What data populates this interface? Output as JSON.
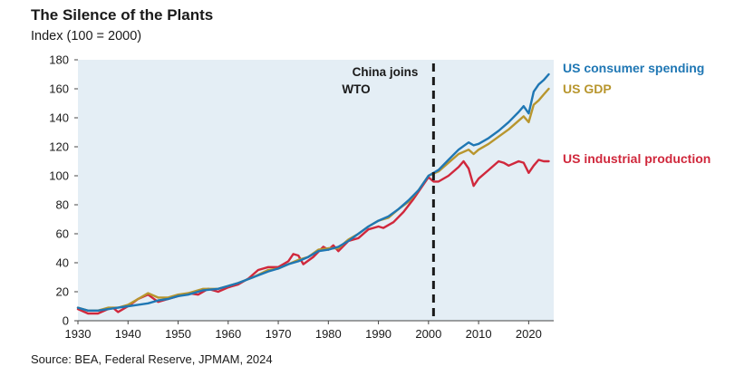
{
  "chart_data": {
    "type": "line",
    "title": "The Silence of the Plants",
    "subtitle": "Index (100 = 2000)",
    "source": "Source: BEA, Federal Reserve, JPMAM, 2024",
    "xlabel": "",
    "ylabel": "",
    "xlim": [
      1930,
      2025
    ],
    "ylim": [
      0,
      180
    ],
    "x_ticks": [
      1930,
      1940,
      1950,
      1960,
      1970,
      1980,
      1990,
      2000,
      2010,
      2020
    ],
    "y_ticks": [
      0,
      20,
      40,
      60,
      80,
      100,
      120,
      140,
      160,
      180
    ],
    "grid": false,
    "legend": "inline-right",
    "annotation": {
      "text_lines": [
        "China joins",
        "WTO"
      ],
      "x": 2001
    },
    "series": [
      {
        "name": "US consumer spending",
        "color": "#1f77b4",
        "points": [
          [
            1930,
            9
          ],
          [
            1932,
            7
          ],
          [
            1934,
            7
          ],
          [
            1936,
            8
          ],
          [
            1938,
            9
          ],
          [
            1940,
            10
          ],
          [
            1942,
            11
          ],
          [
            1944,
            12
          ],
          [
            1946,
            14
          ],
          [
            1948,
            15
          ],
          [
            1950,
            17
          ],
          [
            1952,
            18
          ],
          [
            1955,
            21
          ],
          [
            1958,
            22
          ],
          [
            1960,
            24
          ],
          [
            1962,
            26
          ],
          [
            1965,
            30
          ],
          [
            1968,
            34
          ],
          [
            1970,
            36
          ],
          [
            1972,
            39
          ],
          [
            1974,
            41
          ],
          [
            1976,
            44
          ],
          [
            1978,
            48
          ],
          [
            1980,
            49
          ],
          [
            1982,
            51
          ],
          [
            1984,
            55
          ],
          [
            1986,
            60
          ],
          [
            1988,
            65
          ],
          [
            1990,
            69
          ],
          [
            1992,
            72
          ],
          [
            1994,
            77
          ],
          [
            1996,
            83
          ],
          [
            1998,
            90
          ],
          [
            2000,
            100
          ],
          [
            2002,
            104
          ],
          [
            2004,
            111
          ],
          [
            2006,
            118
          ],
          [
            2008,
            123
          ],
          [
            2009,
            121
          ],
          [
            2010,
            122
          ],
          [
            2012,
            126
          ],
          [
            2014,
            131
          ],
          [
            2016,
            137
          ],
          [
            2018,
            144
          ],
          [
            2019,
            148
          ],
          [
            2020,
            143
          ],
          [
            2021,
            158
          ],
          [
            2022,
            163
          ],
          [
            2023,
            166
          ],
          [
            2024,
            170
          ]
        ]
      },
      {
        "name": "US GDP",
        "color": "#b8962e",
        "points": [
          [
            1930,
            9
          ],
          [
            1932,
            7
          ],
          [
            1934,
            7
          ],
          [
            1936,
            9
          ],
          [
            1938,
            9
          ],
          [
            1940,
            11
          ],
          [
            1942,
            15
          ],
          [
            1944,
            19
          ],
          [
            1946,
            16
          ],
          [
            1948,
            16
          ],
          [
            1950,
            18
          ],
          [
            1952,
            19
          ],
          [
            1955,
            22
          ],
          [
            1958,
            22
          ],
          [
            1960,
            24
          ],
          [
            1962,
            26
          ],
          [
            1965,
            30
          ],
          [
            1968,
            35
          ],
          [
            1970,
            36
          ],
          [
            1972,
            39
          ],
          [
            1974,
            42
          ],
          [
            1976,
            44
          ],
          [
            1978,
            49
          ],
          [
            1980,
            50
          ],
          [
            1982,
            50
          ],
          [
            1984,
            56
          ],
          [
            1986,
            60
          ],
          [
            1988,
            65
          ],
          [
            1990,
            69
          ],
          [
            1992,
            71
          ],
          [
            1994,
            77
          ],
          [
            1996,
            82
          ],
          [
            1998,
            90
          ],
          [
            2000,
            100
          ],
          [
            2002,
            103
          ],
          [
            2004,
            109
          ],
          [
            2006,
            115
          ],
          [
            2008,
            118
          ],
          [
            2009,
            115
          ],
          [
            2010,
            118
          ],
          [
            2012,
            122
          ],
          [
            2014,
            127
          ],
          [
            2016,
            132
          ],
          [
            2018,
            138
          ],
          [
            2019,
            141
          ],
          [
            2020,
            137
          ],
          [
            2021,
            149
          ],
          [
            2022,
            152
          ],
          [
            2023,
            156
          ],
          [
            2024,
            160
          ]
        ]
      },
      {
        "name": "US industrial production",
        "color": "#d0283c",
        "points": [
          [
            1930,
            8
          ],
          [
            1932,
            5
          ],
          [
            1934,
            5
          ],
          [
            1936,
            8
          ],
          [
            1937,
            9
          ],
          [
            1938,
            6
          ],
          [
            1940,
            10
          ],
          [
            1942,
            15
          ],
          [
            1944,
            18
          ],
          [
            1946,
            13
          ],
          [
            1948,
            15
          ],
          [
            1950,
            17
          ],
          [
            1952,
            19
          ],
          [
            1954,
            18
          ],
          [
            1956,
            22
          ],
          [
            1958,
            20
          ],
          [
            1960,
            23
          ],
          [
            1962,
            25
          ],
          [
            1964,
            29
          ],
          [
            1966,
            35
          ],
          [
            1968,
            37
          ],
          [
            1970,
            37
          ],
          [
            1972,
            41
          ],
          [
            1973,
            46
          ],
          [
            1974,
            45
          ],
          [
            1975,
            39
          ],
          [
            1977,
            44
          ],
          [
            1979,
            51
          ],
          [
            1980,
            49
          ],
          [
            1981,
            52
          ],
          [
            1982,
            48
          ],
          [
            1984,
            55
          ],
          [
            1986,
            57
          ],
          [
            1988,
            63
          ],
          [
            1990,
            65
          ],
          [
            1991,
            64
          ],
          [
            1993,
            68
          ],
          [
            1995,
            75
          ],
          [
            1997,
            84
          ],
          [
            1999,
            94
          ],
          [
            2000,
            99
          ],
          [
            2001,
            96
          ],
          [
            2002,
            96
          ],
          [
            2004,
            100
          ],
          [
            2006,
            106
          ],
          [
            2007,
            110
          ],
          [
            2008,
            105
          ],
          [
            2009,
            93
          ],
          [
            2010,
            98
          ],
          [
            2012,
            104
          ],
          [
            2014,
            110
          ],
          [
            2015,
            109
          ],
          [
            2016,
            107
          ],
          [
            2018,
            110
          ],
          [
            2019,
            109
          ],
          [
            2020,
            102
          ],
          [
            2021,
            107
          ],
          [
            2022,
            111
          ],
          [
            2023,
            110
          ],
          [
            2024,
            110
          ]
        ]
      }
    ]
  }
}
